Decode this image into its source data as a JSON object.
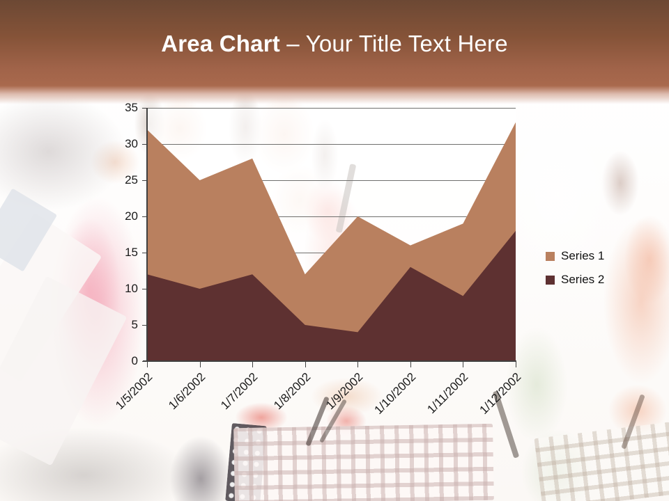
{
  "title": {
    "bold": "Area Chart",
    "rest": " – Your Title Text Here"
  },
  "colors": {
    "header_top": "#6C4834",
    "header_bottom": "#A9694D",
    "title_text": "#FFFFFF",
    "gridline": "#6F6F6D",
    "axis": "#404040",
    "axis_label": "#1A1A1A",
    "series1": "#B9805F",
    "series2": "#5E3131"
  },
  "chart_data": {
    "type": "area",
    "title": "Area Chart – Your Title Text Here",
    "categories": [
      "1/5/2002",
      "1/6/2002",
      "1/7/2002",
      "1/8/2002",
      "1/9/2002",
      "1/10/2002",
      "1/11/2002",
      "1/12/2002"
    ],
    "series": [
      {
        "name": "Series 1",
        "color": "#B9805F",
        "values": [
          32,
          25,
          28,
          12,
          20,
          16,
          19,
          33
        ]
      },
      {
        "name": "Series 2",
        "color": "#5E3131",
        "values": [
          12,
          10,
          12,
          5,
          4,
          13,
          9,
          18
        ]
      }
    ],
    "stacked": false,
    "ylim": [
      0,
      35
    ],
    "yticks": [
      0,
      5,
      10,
      15,
      20,
      25,
      30,
      35
    ],
    "xlabel": "",
    "ylabel": "",
    "grid": "horizontal",
    "legend_position": "right",
    "x_tick_label_rotation_deg": 45
  }
}
